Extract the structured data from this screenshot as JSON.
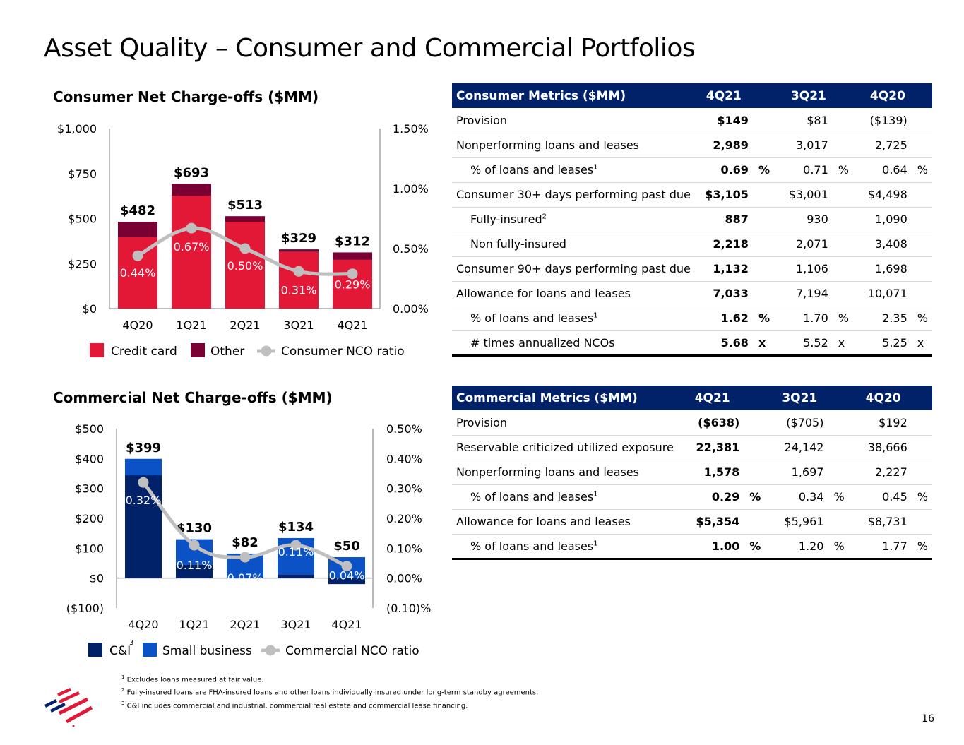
{
  "page": {
    "title": "Asset Quality – Consumer and Commercial Portfolios",
    "page_number": "16"
  },
  "chart_data": [
    {
      "type": "bar",
      "title": "Consumer Net Charge-offs ($MM)",
      "stacked": true,
      "categories": [
        "4Q20",
        "1Q21",
        "2Q21",
        "3Q21",
        "4Q21"
      ],
      "series": [
        {
          "name": "Credit card",
          "color": "#e31837",
          "values": [
            396,
            627,
            482,
            315,
            271
          ]
        },
        {
          "name": "Other",
          "color": "#7a0033",
          "values": [
            86,
            66,
            31,
            14,
            41
          ]
        }
      ],
      "totals": [
        482,
        693,
        513,
        329,
        312
      ],
      "total_labels": [
        "$482",
        "$693",
        "$513",
        "$329",
        "$312"
      ],
      "line_series": {
        "name": "Consumer NCO ratio",
        "color": "#bfbfbf",
        "values": [
          0.44,
          0.67,
          0.5,
          0.31,
          0.29
        ],
        "labels": [
          "0.44%",
          "0.67%",
          "0.50%",
          "0.31%",
          "0.29%"
        ]
      },
      "ylim": [
        0,
        1000
      ],
      "yticks": [
        "$0",
        "$250",
        "$500",
        "$750",
        "$1,000"
      ],
      "ytick_values": [
        0,
        250,
        500,
        750,
        1000
      ],
      "y2lim": [
        0,
        1.5
      ],
      "y2ticks": [
        "0.00%",
        "0.50%",
        "1.00%",
        "1.50%"
      ],
      "y2tick_values": [
        0,
        0.5,
        1.0,
        1.5
      ],
      "legend": [
        "Credit card",
        "Other",
        "Consumer NCO ratio"
      ],
      "legend_position": "bottom",
      "grid": false
    },
    {
      "type": "bar",
      "title": "Commercial Net Charge-offs ($MM)",
      "stacked": true,
      "categories": [
        "4Q20",
        "1Q21",
        "2Q21",
        "3Q21",
        "4Q21"
      ],
      "series": [
        {
          "name": "C&I",
          "footnote": "3",
          "color": "#012169",
          "values": [
            344,
            45,
            0,
            12,
            -20
          ]
        },
        {
          "name": "Small business",
          "color": "#0a52c6",
          "values": [
            55,
            85,
            82,
            122,
            70
          ]
        }
      ],
      "totals": [
        399,
        130,
        82,
        134,
        50
      ],
      "total_labels": [
        "$399",
        "$130",
        "$82",
        "$134",
        "$50"
      ],
      "line_series": {
        "name": "Commercial NCO ratio",
        "color": "#bfbfbf",
        "values": [
          0.32,
          0.11,
          0.07,
          0.11,
          0.04
        ],
        "labels": [
          "0.32%",
          "0.11%",
          "0.07%",
          "0.11%",
          "0.04%"
        ]
      },
      "ylim": [
        -100,
        500
      ],
      "yticks": [
        "($100)",
        "$0",
        "$100",
        "$200",
        "$300",
        "$400",
        "$500"
      ],
      "ytick_values": [
        -100,
        0,
        100,
        200,
        300,
        400,
        500
      ],
      "y2lim": [
        -0.1,
        0.5
      ],
      "y2ticks": [
        "(0.10)%",
        "0.00%",
        "0.10%",
        "0.20%",
        "0.30%",
        "0.40%",
        "0.50%"
      ],
      "y2tick_values": [
        -0.1,
        0,
        0.1,
        0.2,
        0.3,
        0.4,
        0.5
      ],
      "legend": [
        "C&I",
        "Small business",
        "Commercial NCO ratio"
      ],
      "legend_position": "bottom",
      "grid": false
    }
  ],
  "consumer_table": {
    "header": [
      "Consumer Metrics ($MM)",
      "4Q21",
      "3Q21",
      "4Q20"
    ],
    "rows": [
      {
        "label": "Provision",
        "sup": "",
        "indent": false,
        "values": [
          "$149",
          "$81",
          "($139)"
        ],
        "unit": ""
      },
      {
        "label": "Nonperforming loans and leases",
        "sup": "",
        "indent": false,
        "values": [
          "2,989",
          "3,017",
          "2,725"
        ],
        "unit": ""
      },
      {
        "label": "% of loans and leases",
        "sup": "1",
        "indent": true,
        "values": [
          "0.69",
          "0.71",
          "0.64"
        ],
        "unit": "%"
      },
      {
        "label": "Consumer 30+ days performing past due",
        "sup": "",
        "indent": false,
        "values": [
          "$3,105",
          "$3,001",
          "$4,498"
        ],
        "unit": ""
      },
      {
        "label": "Fully-insured",
        "sup": "2",
        "indent": true,
        "values": [
          "887",
          "930",
          "1,090"
        ],
        "unit": ""
      },
      {
        "label": "Non fully-insured",
        "sup": "",
        "indent": true,
        "values": [
          "2,218",
          "2,071",
          "3,408"
        ],
        "unit": ""
      },
      {
        "label": "Consumer 90+ days performing past due",
        "sup": "",
        "indent": false,
        "values": [
          "1,132",
          "1,106",
          "1,698"
        ],
        "unit": ""
      },
      {
        "label": "Allowance for loans and leases",
        "sup": "",
        "indent": false,
        "values": [
          "7,033",
          "7,194",
          "10,071"
        ],
        "unit": ""
      },
      {
        "label": "% of loans and leases",
        "sup": "1",
        "indent": true,
        "values": [
          "1.62",
          "1.70",
          "2.35"
        ],
        "unit": "%"
      },
      {
        "label": "# times annualized NCOs",
        "sup": "",
        "indent": true,
        "values": [
          "5.68",
          "5.52",
          "5.25"
        ],
        "unit": "x"
      }
    ]
  },
  "commercial_table": {
    "header": [
      "Commercial Metrics ($MM)",
      "4Q21",
      "3Q21",
      "4Q20"
    ],
    "rows": [
      {
        "label": "Provision",
        "sup": "",
        "indent": false,
        "values": [
          "($638)",
          "($705)",
          "$192"
        ],
        "unit": ""
      },
      {
        "label": "Reservable criticized utilized exposure",
        "sup": "",
        "indent": false,
        "values": [
          "22,381",
          "24,142",
          "38,666"
        ],
        "unit": ""
      },
      {
        "label": "Nonperforming loans and leases",
        "sup": "",
        "indent": false,
        "values": [
          "1,578",
          "1,697",
          "2,227"
        ],
        "unit": ""
      },
      {
        "label": "% of loans and leases",
        "sup": "1",
        "indent": true,
        "values": [
          "0.29",
          "0.34",
          "0.45"
        ],
        "unit": "%"
      },
      {
        "label": "Allowance for loans and leases",
        "sup": "",
        "indent": false,
        "values": [
          "$5,354",
          "$5,961",
          "$8,731"
        ],
        "unit": ""
      },
      {
        "label": "% of loans and leases",
        "sup": "1",
        "indent": true,
        "values": [
          "1.00",
          "1.20",
          "1.77"
        ],
        "unit": "%"
      }
    ]
  },
  "footnotes": [
    {
      "num": "1",
      "text": "Excludes loans measured at fair value."
    },
    {
      "num": "2",
      "text": "Fully-insured loans are FHA-insured loans and other loans individually insured under long-term standby agreements."
    },
    {
      "num": "3",
      "text": "C&I includes commercial and industrial, commercial real estate and commercial lease financing."
    }
  ],
  "logo": {
    "name": "bank-flagscape-logo",
    "colors": [
      "#012169",
      "#e31837"
    ]
  }
}
